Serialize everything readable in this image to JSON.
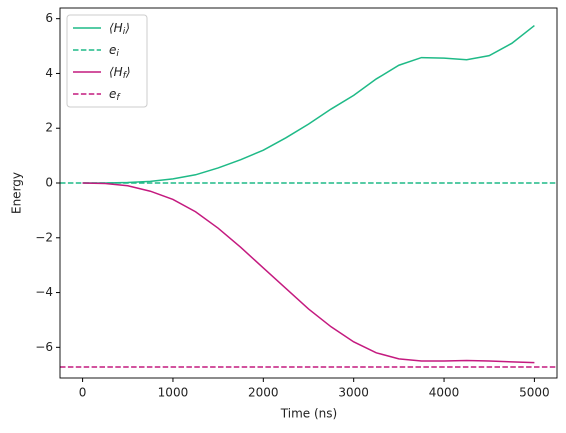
{
  "chart_data": {
    "type": "line",
    "xlabel": "Time (ns)",
    "ylabel": "Energy",
    "x": [
      0,
      250,
      500,
      750,
      1000,
      1250,
      1500,
      1750,
      2000,
      2250,
      2500,
      2750,
      3000,
      3250,
      3500,
      3750,
      4000,
      4250,
      4500,
      4750,
      5000
    ],
    "series": [
      {
        "name": "⟨H_i⟩",
        "color": "#1fba87",
        "style": "solid",
        "values": [
          0,
          0,
          0.02,
          0.06,
          0.15,
          0.3,
          0.55,
          0.85,
          1.2,
          1.65,
          2.15,
          2.7,
          3.2,
          3.8,
          4.3,
          4.58,
          4.56,
          4.5,
          4.65,
          5.1,
          5.75
        ]
      },
      {
        "name": "e_i",
        "color": "#1fba87",
        "style": "dashed",
        "value": 0
      },
      {
        "name": "⟨H_f⟩",
        "color": "#c41a7f",
        "style": "solid",
        "values": [
          0,
          -0.02,
          -0.1,
          -0.3,
          -0.6,
          -1.05,
          -1.65,
          -2.35,
          -3.1,
          -3.85,
          -4.6,
          -5.25,
          -5.8,
          -6.2,
          -6.42,
          -6.5,
          -6.5,
          -6.48,
          -6.5,
          -6.53,
          -6.56
        ]
      },
      {
        "name": "e_f",
        "color": "#c41a7f",
        "style": "dashed",
        "value": -6.72
      }
    ],
    "xlim": [
      -250,
      5250
    ],
    "xticks": [
      0,
      1000,
      2000,
      3000,
      4000,
      5000
    ],
    "ylim": [
      -7.12,
      6.39
    ],
    "yticks": [
      {
        "value": -6,
        "label": "−6"
      },
      {
        "value": -4,
        "label": "−4"
      },
      {
        "value": -2,
        "label": "−2"
      },
      0,
      2,
      4,
      6
    ],
    "legend": "upper left",
    "grid": false
  }
}
